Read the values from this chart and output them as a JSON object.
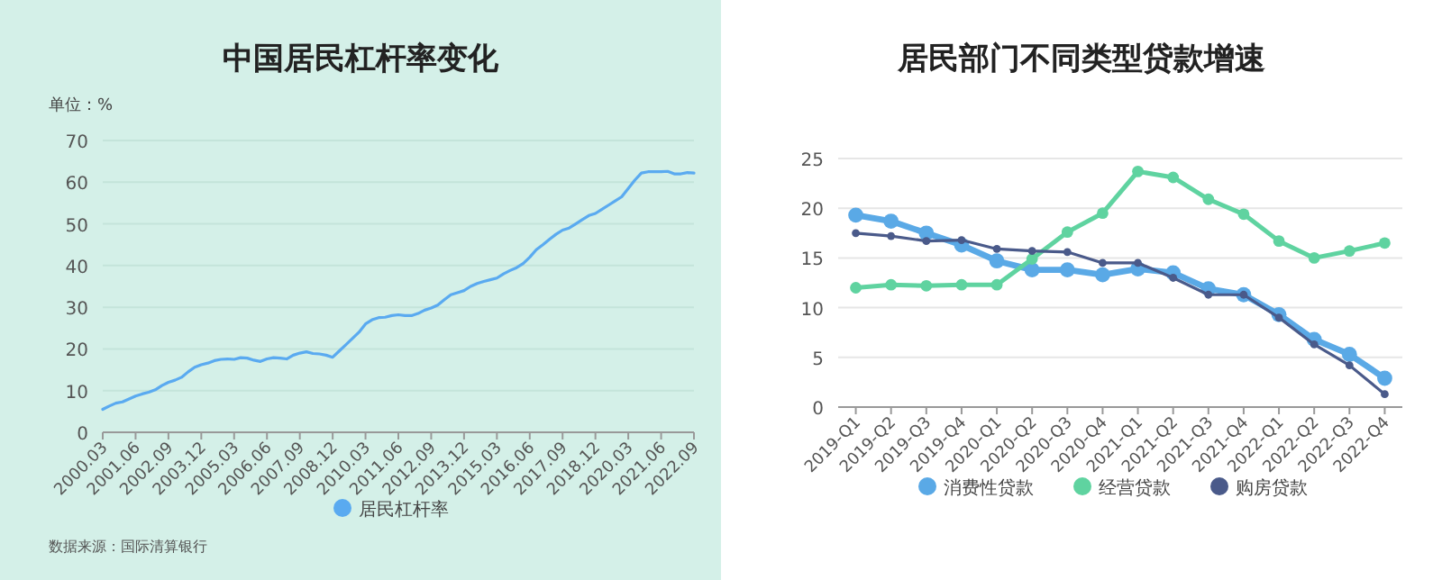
{
  "chart_data": [
    {
      "type": "line",
      "title": "中国居民杠杆率变化",
      "ylabel": "单位：%",
      "categories": [
        "2000.03",
        null,
        null,
        null,
        null,
        "2001.06",
        null,
        null,
        null,
        null,
        "2002.09",
        null,
        null,
        null,
        null,
        "2003.12",
        null,
        null,
        null,
        null,
        "2005.03",
        null,
        null,
        null,
        null,
        "2006.06",
        null,
        null,
        null,
        null,
        "2007.09",
        null,
        null,
        null,
        null,
        "2008.12",
        null,
        null,
        null,
        null,
        "2010.03",
        null,
        null,
        null,
        null,
        "2011.06",
        null,
        null,
        null,
        null,
        "2012.09",
        null,
        null,
        null,
        null,
        "2013.12",
        null,
        null,
        null,
        null,
        "2015.03",
        null,
        null,
        null,
        null,
        "2016.06",
        null,
        null,
        null,
        null,
        "2017.09",
        null,
        null,
        null,
        null,
        "2018.12",
        null,
        null,
        null,
        null,
        "2020.03",
        null,
        null,
        null,
        null,
        "2021.06",
        null,
        null,
        null,
        null,
        "2022.09"
      ],
      "series": [
        {
          "name": "居民杠杆率",
          "color": "#5aaaf0",
          "values": [
            5.5,
            6.3,
            7.0,
            7.3,
            8.0,
            8.7,
            9.2,
            9.6,
            10.2,
            11.2,
            12.0,
            12.5,
            13.2,
            14.5,
            15.6,
            16.2,
            16.6,
            17.2,
            17.5,
            17.6,
            17.5,
            17.9,
            17.8,
            17.3,
            17.0,
            17.6,
            17.9,
            17.8,
            17.6,
            18.5,
            19.0,
            19.3,
            18.9,
            18.8,
            18.5,
            18.0,
            19.5,
            21.0,
            22.5,
            24.0,
            26.0,
            27.0,
            27.5,
            27.6,
            28.0,
            28.2,
            28.0,
            28.0,
            28.5,
            29.3,
            29.8,
            30.5,
            31.8,
            33.0,
            33.5,
            34.0,
            35.0,
            35.7,
            36.2,
            36.6,
            37.0,
            38.0,
            38.8,
            39.5,
            40.5,
            42.0,
            43.8,
            45.0,
            46.3,
            47.5,
            48.5,
            49.0,
            50.0,
            51.0,
            52.0,
            52.5,
            53.5,
            54.5,
            55.5,
            56.5,
            58.5,
            60.5,
            62.2,
            62.5,
            62.5,
            62.5,
            62.6,
            62.0,
            62.0,
            62.3,
            62.2
          ]
        }
      ],
      "ylim": [
        0,
        70
      ],
      "yticks": [
        0,
        10,
        20,
        30,
        40,
        50,
        60,
        70
      ],
      "grid": "y",
      "legend": "bottom",
      "annotations": [
        "数据来源：国际清算银行"
      ]
    },
    {
      "type": "line",
      "title": "居民部门不同类型贷款增速",
      "categories": [
        "2019-Q1",
        "2019-Q2",
        "2019-Q3",
        "2019-Q4",
        "2020-Q1",
        "2020-Q2",
        "2020-Q3",
        "2020-Q4",
        "2021-Q1",
        "2021-Q2",
        "2021-Q3",
        "2021-Q4",
        "2022-Q1",
        "2022-Q2",
        "2022-Q3",
        "2022-Q4"
      ],
      "series": [
        {
          "name": "消费性贷款",
          "color": "#5aa9e6",
          "values": [
            19.3,
            18.7,
            17.5,
            16.3,
            14.7,
            13.8,
            13.8,
            13.3,
            13.9,
            13.5,
            11.9,
            11.3,
            9.3,
            6.8,
            5.3,
            2.9
          ]
        },
        {
          "name": "经营贷款",
          "color": "#5fd3a0",
          "values": [
            12.0,
            12.3,
            12.2,
            12.3,
            12.3,
            14.9,
            17.6,
            19.5,
            23.7,
            23.1,
            20.9,
            19.4,
            16.7,
            15.0,
            15.7,
            16.5
          ]
        },
        {
          "name": "购房贷款",
          "color": "#4a5a8a",
          "values": [
            17.5,
            17.2,
            16.7,
            16.8,
            15.9,
            15.7,
            15.6,
            14.5,
            14.5,
            13.0,
            11.3,
            11.3,
            9.0,
            6.3,
            4.2,
            1.3
          ]
        }
      ],
      "ylim": [
        0,
        25
      ],
      "yticks": [
        0,
        5,
        10,
        15,
        20,
        25
      ],
      "grid": "y",
      "legend": "bottom",
      "marker": "circle"
    }
  ]
}
